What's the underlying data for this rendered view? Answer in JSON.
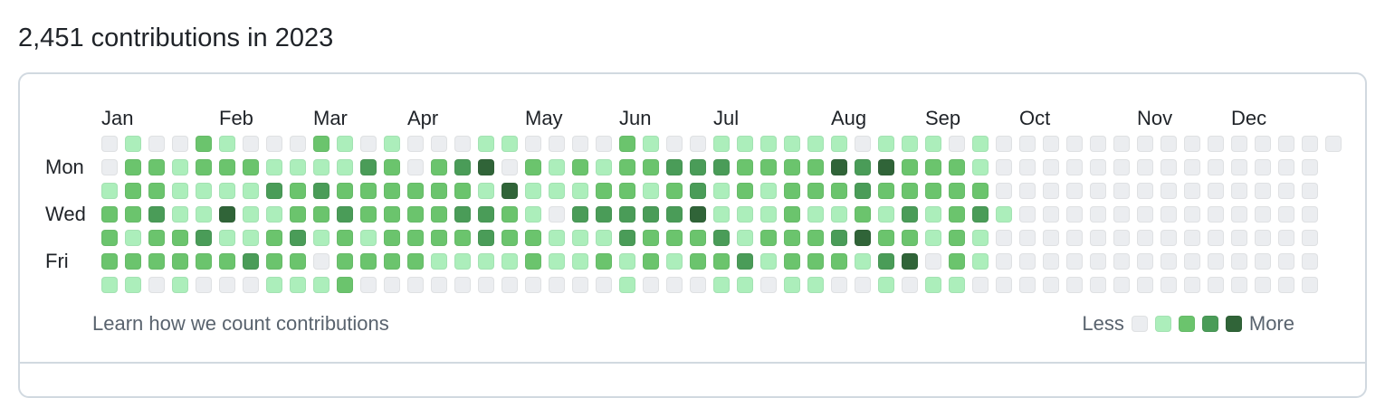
{
  "header": {
    "title": "2,451 contributions in 2023"
  },
  "calendar": {
    "year": "2023",
    "months": [
      "Jan",
      "Feb",
      "Mar",
      "Apr",
      "May",
      "Jun",
      "Jul",
      "Aug",
      "Sep",
      "Oct",
      "Nov",
      "Dec"
    ],
    "month_start_weeks": [
      0,
      5,
      9,
      13,
      18,
      22,
      26,
      31,
      35,
      39,
      44,
      48
    ],
    "day_labels": [
      "Mon",
      "Wed",
      "Fri"
    ],
    "level_colors": [
      "#ebedf0",
      "#aceebb",
      "#6bc46d",
      "#4a9c58",
      "#306438"
    ],
    "weeks": [
      [
        0,
        0,
        1,
        2,
        2,
        2,
        1
      ],
      [
        1,
        2,
        2,
        2,
        1,
        2,
        1
      ],
      [
        0,
        2,
        2,
        3,
        2,
        2,
        0
      ],
      [
        0,
        1,
        1,
        1,
        2,
        2,
        1
      ],
      [
        2,
        2,
        1,
        1,
        3,
        2,
        0
      ],
      [
        1,
        2,
        1,
        4,
        1,
        2,
        0
      ],
      [
        0,
        2,
        1,
        1,
        1,
        3,
        0
      ],
      [
        0,
        1,
        3,
        1,
        2,
        2,
        1
      ],
      [
        0,
        1,
        2,
        2,
        3,
        2,
        1
      ],
      [
        2,
        1,
        3,
        2,
        1,
        0,
        1
      ],
      [
        1,
        1,
        2,
        3,
        2,
        2,
        2
      ],
      [
        0,
        3,
        2,
        2,
        1,
        2,
        0
      ],
      [
        1,
        2,
        2,
        2,
        2,
        2,
        0
      ],
      [
        0,
        0,
        2,
        2,
        2,
        2,
        0
      ],
      [
        0,
        2,
        2,
        2,
        2,
        1,
        0
      ],
      [
        0,
        3,
        2,
        3,
        2,
        1,
        0
      ],
      [
        1,
        4,
        1,
        3,
        3,
        1,
        0
      ],
      [
        1,
        0,
        4,
        2,
        2,
        1,
        0
      ],
      [
        0,
        2,
        1,
        1,
        2,
        2,
        0
      ],
      [
        0,
        1,
        1,
        0,
        1,
        1,
        0
      ],
      [
        0,
        2,
        1,
        3,
        1,
        1,
        0
      ],
      [
        0,
        1,
        2,
        3,
        1,
        2,
        0
      ],
      [
        2,
        2,
        2,
        3,
        3,
        1,
        1
      ],
      [
        1,
        2,
        1,
        3,
        2,
        2,
        0
      ],
      [
        0,
        3,
        2,
        3,
        2,
        1,
        0
      ],
      [
        0,
        3,
        3,
        4,
        2,
        2,
        0
      ],
      [
        1,
        3,
        1,
        1,
        3,
        2,
        1
      ],
      [
        1,
        2,
        2,
        1,
        1,
        3,
        1
      ],
      [
        1,
        2,
        1,
        1,
        2,
        1,
        0
      ],
      [
        1,
        2,
        2,
        2,
        2,
        2,
        1
      ],
      [
        1,
        2,
        2,
        1,
        2,
        2,
        1
      ],
      [
        1,
        4,
        2,
        1,
        3,
        2,
        0
      ],
      [
        0,
        3,
        3,
        2,
        4,
        1,
        0
      ],
      [
        1,
        4,
        2,
        1,
        2,
        3,
        1
      ],
      [
        1,
        2,
        2,
        3,
        2,
        4,
        0
      ],
      [
        1,
        2,
        2,
        1,
        1,
        0,
        1
      ],
      [
        0,
        2,
        2,
        2,
        2,
        2,
        1
      ],
      [
        1,
        1,
        2,
        3,
        1,
        1,
        0
      ],
      [
        0,
        0,
        0,
        1,
        0,
        0,
        0
      ],
      [
        0,
        0,
        0,
        0,
        0,
        0,
        0
      ],
      [
        0,
        0,
        0,
        0,
        0,
        0,
        0
      ],
      [
        0,
        0,
        0,
        0,
        0,
        0,
        0
      ],
      [
        0,
        0,
        0,
        0,
        0,
        0,
        0
      ],
      [
        0,
        0,
        0,
        0,
        0,
        0,
        0
      ],
      [
        0,
        0,
        0,
        0,
        0,
        0,
        0
      ],
      [
        0,
        0,
        0,
        0,
        0,
        0,
        0
      ],
      [
        0,
        0,
        0,
        0,
        0,
        0,
        0
      ],
      [
        0,
        0,
        0,
        0,
        0,
        0,
        0
      ],
      [
        0,
        0,
        0,
        0,
        0,
        0,
        0
      ],
      [
        0,
        0,
        0,
        0,
        0,
        0,
        0
      ],
      [
        0,
        0,
        0,
        0,
        0,
        0,
        0
      ],
      [
        0,
        0,
        0,
        0,
        0,
        0,
        0
      ],
      [
        0,
        0,
        0,
        0,
        0,
        0,
        0
      ]
    ],
    "last_week_days": 1
  },
  "footer": {
    "learn_link": "Learn how we count contributions",
    "legend_less": "Less",
    "legend_more": "More"
  }
}
